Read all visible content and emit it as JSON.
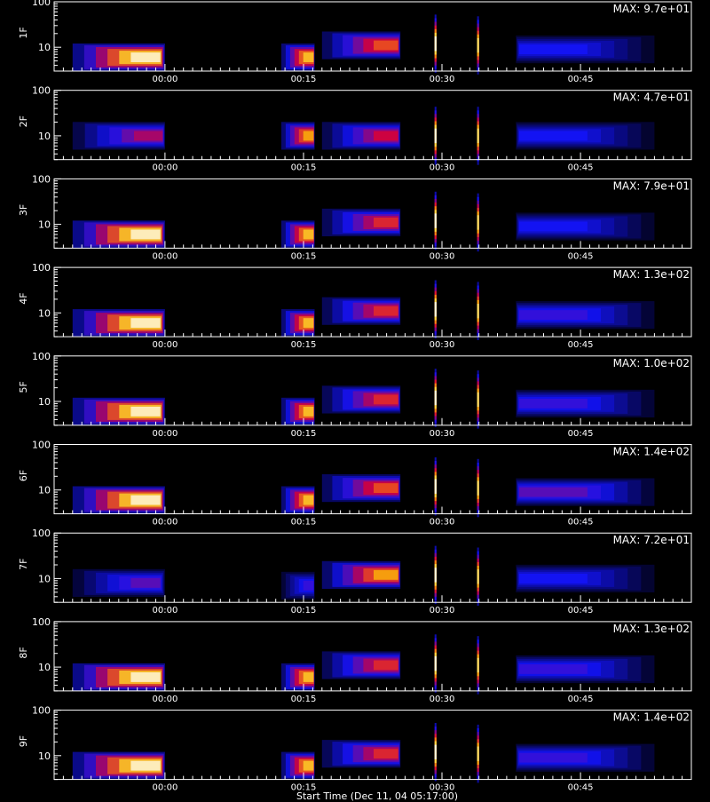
{
  "figure": {
    "xlabel": "Start Time (Dec 11, 04 05:17:00)",
    "colors": {
      "background": "#000000",
      "axes": "#ffffff",
      "text": "#ffffff"
    },
    "colormap": "black-blue-red-yellow-white"
  },
  "chart_data": [
    {
      "type": "heatmap",
      "panel_label": "1F",
      "max_label": "MAX: 9.7e+01",
      "max_value": 97,
      "y_scale": "log",
      "y_ticks": [
        "10",
        "100"
      ],
      "x_tick_labels": [
        "00:00",
        "00:15",
        "00:30",
        "00:45"
      ],
      "x_tick_minutes": [
        0,
        15,
        30,
        45
      ],
      "x_range_minutes": [
        -12,
        57
      ],
      "y_range": [
        3,
        100
      ],
      "grid": false,
      "data_gaps_minutes": [
        [
          0,
          12.6
        ],
        [
          16.2,
          16.3
        ]
      ],
      "bursts": [
        {
          "t_start": -10,
          "t_end": 0,
          "peak_t": -1,
          "freq_center": 6,
          "intensity": 1.0
        },
        {
          "t_start": 12.6,
          "t_end": 16.2,
          "peak_t": 16,
          "freq_center": 6,
          "intensity": 0.85
        },
        {
          "t_start": 17,
          "t_end": 25.5,
          "peak_t": 25,
          "freq_center": 11,
          "intensity": 0.7
        },
        {
          "t_start": 29.2,
          "t_end": 29.4,
          "peak_t": 29.3,
          "freq_center": 12,
          "intensity": 1.0
        },
        {
          "t_start": 33.8,
          "t_end": 34.0,
          "peak_t": 33.9,
          "freq_center": 11,
          "intensity": 0.9
        },
        {
          "t_start": 38,
          "t_end": 53,
          "peak_t": 38.5,
          "freq_center": 9,
          "intensity": 0.35
        }
      ]
    },
    {
      "type": "heatmap",
      "panel_label": "2F",
      "max_label": "MAX: 4.7e+01",
      "max_value": 47,
      "y_scale": "log",
      "y_ticks": [
        "10",
        "100"
      ],
      "x_tick_labels": [
        "00:00",
        "00:15",
        "00:30",
        "00:45"
      ],
      "x_tick_minutes": [
        0,
        15,
        30,
        45
      ],
      "x_range_minutes": [
        -12,
        57
      ],
      "y_range": [
        3,
        100
      ],
      "grid": false,
      "bursts": [
        {
          "t_start": -10,
          "t_end": 0,
          "peak_t": -0.5,
          "freq_center": 10,
          "intensity": 0.55
        },
        {
          "t_start": 12.6,
          "t_end": 16.2,
          "peak_t": 16,
          "freq_center": 10,
          "intensity": 0.8
        },
        {
          "t_start": 17,
          "t_end": 25.5,
          "peak_t": 25,
          "freq_center": 10,
          "intensity": 0.6
        },
        {
          "t_start": 29.2,
          "t_end": 29.4,
          "peak_t": 29.3,
          "freq_center": 10,
          "intensity": 1.0
        },
        {
          "t_start": 33.8,
          "t_end": 34.0,
          "peak_t": 33.9,
          "freq_center": 10,
          "intensity": 0.9
        },
        {
          "t_start": 38,
          "t_end": 53,
          "peak_t": 38.5,
          "freq_center": 10,
          "intensity": 0.35
        }
      ]
    },
    {
      "type": "heatmap",
      "panel_label": "3F",
      "max_label": "MAX: 7.9e+01",
      "max_value": 79,
      "y_scale": "log",
      "y_ticks": [
        "10",
        "100"
      ],
      "x_tick_labels": [
        "00:00",
        "00:15",
        "00:30",
        "00:45"
      ],
      "x_tick_minutes": [
        0,
        15,
        30,
        45
      ],
      "x_range_minutes": [
        -12,
        57
      ],
      "y_range": [
        3,
        100
      ],
      "grid": false,
      "bursts": [
        {
          "t_start": -10,
          "t_end": 0,
          "peak_t": -1,
          "freq_center": 6,
          "intensity": 1.0
        },
        {
          "t_start": 12.6,
          "t_end": 16.2,
          "peak_t": 16,
          "freq_center": 6,
          "intensity": 0.85
        },
        {
          "t_start": 17,
          "t_end": 25.5,
          "peak_t": 25,
          "freq_center": 11,
          "intensity": 0.65
        },
        {
          "t_start": 29.2,
          "t_end": 29.4,
          "peak_t": 29.3,
          "freq_center": 12,
          "intensity": 1.0
        },
        {
          "t_start": 33.8,
          "t_end": 34.0,
          "peak_t": 33.9,
          "freq_center": 11,
          "intensity": 0.9
        },
        {
          "t_start": 38,
          "t_end": 53,
          "peak_t": 38.5,
          "freq_center": 9,
          "intensity": 0.35
        }
      ]
    },
    {
      "type": "heatmap",
      "panel_label": "4F",
      "max_label": "MAX: 1.3e+02",
      "max_value": 130,
      "y_scale": "log",
      "y_ticks": [
        "10",
        "100"
      ],
      "x_tick_labels": [
        "00:00",
        "00:15",
        "00:30",
        "00:45"
      ],
      "x_tick_minutes": [
        0,
        15,
        30,
        45
      ],
      "x_range_minutes": [
        -12,
        57
      ],
      "y_range": [
        3,
        100
      ],
      "grid": false,
      "bursts": [
        {
          "t_start": -10,
          "t_end": 0,
          "peak_t": -1,
          "freq_center": 6,
          "intensity": 1.0
        },
        {
          "t_start": 12.6,
          "t_end": 16.2,
          "peak_t": 16,
          "freq_center": 6,
          "intensity": 0.85
        },
        {
          "t_start": 17,
          "t_end": 25.5,
          "peak_t": 25,
          "freq_center": 11,
          "intensity": 0.65
        },
        {
          "t_start": 29.2,
          "t_end": 29.4,
          "peak_t": 29.3,
          "freq_center": 12,
          "intensity": 1.0
        },
        {
          "t_start": 33.8,
          "t_end": 34.0,
          "peak_t": 33.9,
          "freq_center": 11,
          "intensity": 0.9
        },
        {
          "t_start": 38,
          "t_end": 53,
          "peak_t": 38.5,
          "freq_center": 9,
          "intensity": 0.4
        }
      ]
    },
    {
      "type": "heatmap",
      "panel_label": "5F",
      "max_label": "MAX: 1.0e+02",
      "max_value": 100,
      "y_scale": "log",
      "y_ticks": [
        "10",
        "100"
      ],
      "x_tick_labels": [
        "00:00",
        "00:15",
        "00:30",
        "00:45"
      ],
      "x_tick_minutes": [
        0,
        15,
        30,
        45
      ],
      "x_range_minutes": [
        -12,
        57
      ],
      "y_range": [
        3,
        100
      ],
      "grid": false,
      "bursts": [
        {
          "t_start": -10,
          "t_end": 0,
          "peak_t": -1,
          "freq_center": 6,
          "intensity": 1.0
        },
        {
          "t_start": 12.6,
          "t_end": 16.2,
          "peak_t": 16,
          "freq_center": 6,
          "intensity": 0.85
        },
        {
          "t_start": 17,
          "t_end": 25.5,
          "peak_t": 25,
          "freq_center": 11,
          "intensity": 0.65
        },
        {
          "t_start": 29.2,
          "t_end": 29.4,
          "peak_t": 29.3,
          "freq_center": 12,
          "intensity": 1.0
        },
        {
          "t_start": 33.8,
          "t_end": 34.0,
          "peak_t": 33.9,
          "freq_center": 11,
          "intensity": 0.9
        },
        {
          "t_start": 38,
          "t_end": 53,
          "peak_t": 38.5,
          "freq_center": 9,
          "intensity": 0.4
        }
      ]
    },
    {
      "type": "heatmap",
      "panel_label": "6F",
      "max_label": "MAX: 1.4e+02",
      "max_value": 140,
      "y_scale": "log",
      "y_ticks": [
        "10",
        "100"
      ],
      "x_tick_labels": [
        "00:00",
        "00:15",
        "00:30",
        "00:45"
      ],
      "x_tick_minutes": [
        0,
        15,
        30,
        45
      ],
      "x_range_minutes": [
        -12,
        57
      ],
      "y_range": [
        3,
        100
      ],
      "grid": false,
      "bursts": [
        {
          "t_start": -10,
          "t_end": 0,
          "peak_t": -1,
          "freq_center": 6,
          "intensity": 1.0
        },
        {
          "t_start": 12.6,
          "t_end": 16.2,
          "peak_t": 16,
          "freq_center": 6,
          "intensity": 0.85
        },
        {
          "t_start": 17,
          "t_end": 25.5,
          "peak_t": 25,
          "freq_center": 11,
          "intensity": 0.7
        },
        {
          "t_start": 29.2,
          "t_end": 29.4,
          "peak_t": 29.3,
          "freq_center": 12,
          "intensity": 1.0
        },
        {
          "t_start": 33.8,
          "t_end": 34.0,
          "peak_t": 33.9,
          "freq_center": 11,
          "intensity": 0.9
        },
        {
          "t_start": 38,
          "t_end": 53,
          "peak_t": 38.5,
          "freq_center": 9,
          "intensity": 0.45
        }
      ]
    },
    {
      "type": "heatmap",
      "panel_label": "7F",
      "max_label": "MAX: 7.2e+01",
      "max_value": 72,
      "y_scale": "log",
      "y_ticks": [
        "10",
        "100"
      ],
      "x_tick_labels": [
        "00:00",
        "00:15",
        "00:30",
        "00:45"
      ],
      "x_tick_minutes": [
        0,
        15,
        30,
        45
      ],
      "x_range_minutes": [
        -12,
        57
      ],
      "y_range": [
        3,
        100
      ],
      "grid": false,
      "bursts": [
        {
          "t_start": -10,
          "t_end": 0,
          "peak_t": -1,
          "freq_center": 8,
          "intensity": 0.45
        },
        {
          "t_start": 12.6,
          "t_end": 16.2,
          "peak_t": 16,
          "freq_center": 7,
          "intensity": 0.4
        },
        {
          "t_start": 17,
          "t_end": 25.5,
          "peak_t": 25,
          "freq_center": 12,
          "intensity": 0.8
        },
        {
          "t_start": 29.2,
          "t_end": 29.4,
          "peak_t": 29.3,
          "freq_center": 12,
          "intensity": 1.0
        },
        {
          "t_start": 33.8,
          "t_end": 34.0,
          "peak_t": 33.9,
          "freq_center": 11,
          "intensity": 0.9
        },
        {
          "t_start": 38,
          "t_end": 53,
          "peak_t": 38.5,
          "freq_center": 10,
          "intensity": 0.35
        }
      ]
    },
    {
      "type": "heatmap",
      "panel_label": "8F",
      "max_label": "MAX: 1.3e+02",
      "max_value": 130,
      "y_scale": "log",
      "y_ticks": [
        "10",
        "100"
      ],
      "x_tick_labels": [
        "00:00",
        "00:15",
        "00:30",
        "00:45"
      ],
      "x_tick_minutes": [
        0,
        15,
        30,
        45
      ],
      "x_range_minutes": [
        -12,
        57
      ],
      "y_range": [
        3,
        100
      ],
      "grid": false,
      "bursts": [
        {
          "t_start": -10,
          "t_end": 0,
          "peak_t": -1,
          "freq_center": 6,
          "intensity": 1.0
        },
        {
          "t_start": 12.6,
          "t_end": 16.2,
          "peak_t": 16,
          "freq_center": 6,
          "intensity": 0.85
        },
        {
          "t_start": 17,
          "t_end": 25.5,
          "peak_t": 25,
          "freq_center": 11,
          "intensity": 0.65
        },
        {
          "t_start": 29.2,
          "t_end": 29.4,
          "peak_t": 29.3,
          "freq_center": 12,
          "intensity": 1.0
        },
        {
          "t_start": 33.8,
          "t_end": 34.0,
          "peak_t": 33.9,
          "freq_center": 11,
          "intensity": 0.9
        },
        {
          "t_start": 38,
          "t_end": 53,
          "peak_t": 38.5,
          "freq_center": 9,
          "intensity": 0.4
        }
      ]
    },
    {
      "type": "heatmap",
      "panel_label": "9F",
      "max_label": "MAX: 1.4e+02",
      "max_value": 140,
      "y_scale": "log",
      "y_ticks": [
        "10",
        "100"
      ],
      "x_tick_labels": [
        "00:00",
        "00:15",
        "00:30",
        "00:45"
      ],
      "x_tick_minutes": [
        0,
        15,
        30,
        45
      ],
      "x_range_minutes": [
        -12,
        57
      ],
      "y_range": [
        3,
        100
      ],
      "grid": false,
      "bursts": [
        {
          "t_start": -10,
          "t_end": 0,
          "peak_t": -1,
          "freq_center": 6,
          "intensity": 1.0
        },
        {
          "t_start": 12.6,
          "t_end": 16.2,
          "peak_t": 16,
          "freq_center": 6,
          "intensity": 0.85
        },
        {
          "t_start": 17,
          "t_end": 25.5,
          "peak_t": 25,
          "freq_center": 11,
          "intensity": 0.65
        },
        {
          "t_start": 29.2,
          "t_end": 29.4,
          "peak_t": 29.3,
          "freq_center": 12,
          "intensity": 1.0
        },
        {
          "t_start": 33.8,
          "t_end": 34.0,
          "peak_t": 33.9,
          "freq_center": 11,
          "intensity": 0.9
        },
        {
          "t_start": 38,
          "t_end": 53,
          "peak_t": 38.5,
          "freq_center": 9,
          "intensity": 0.4
        }
      ]
    }
  ]
}
